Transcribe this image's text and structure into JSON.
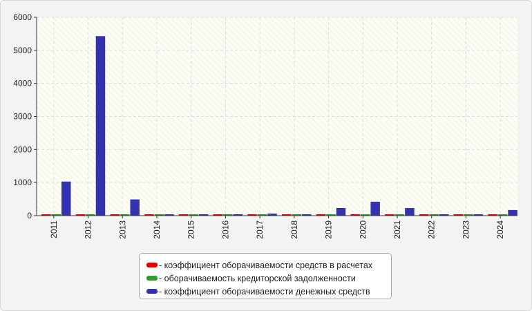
{
  "chart_data": {
    "type": "bar",
    "categories": [
      "2011",
      "2012",
      "2013",
      "2014",
      "2015",
      "2016",
      "2017",
      "2018",
      "2019",
      "2020",
      "2021",
      "2022",
      "2023",
      "2024"
    ],
    "series": [
      {
        "name": "- коэффициент оборачиваемости средств в расчетах",
        "color": "#e60000",
        "values": [
          12,
          10,
          10,
          10,
          10,
          10,
          10,
          10,
          10,
          10,
          10,
          10,
          10,
          10
        ]
      },
      {
        "name": "- оборачиваемость кредиторской задолженности",
        "color": "#2ca02c",
        "values": [
          5,
          5,
          5,
          5,
          5,
          5,
          5,
          5,
          5,
          5,
          5,
          5,
          5,
          5
        ]
      },
      {
        "name": "- коэффициент оборачиваемости денежных средств",
        "color": "#3333b2",
        "values": [
          1030,
          5430,
          490,
          40,
          10,
          40,
          60,
          40,
          230,
          420,
          230,
          40,
          40,
          170
        ]
      }
    ],
    "ylim": [
      0,
      6000
    ],
    "yticks": [
      0,
      1000,
      2000,
      3000,
      4000,
      5000,
      6000
    ],
    "grid": true,
    "legend_position": "bottom-center"
  }
}
